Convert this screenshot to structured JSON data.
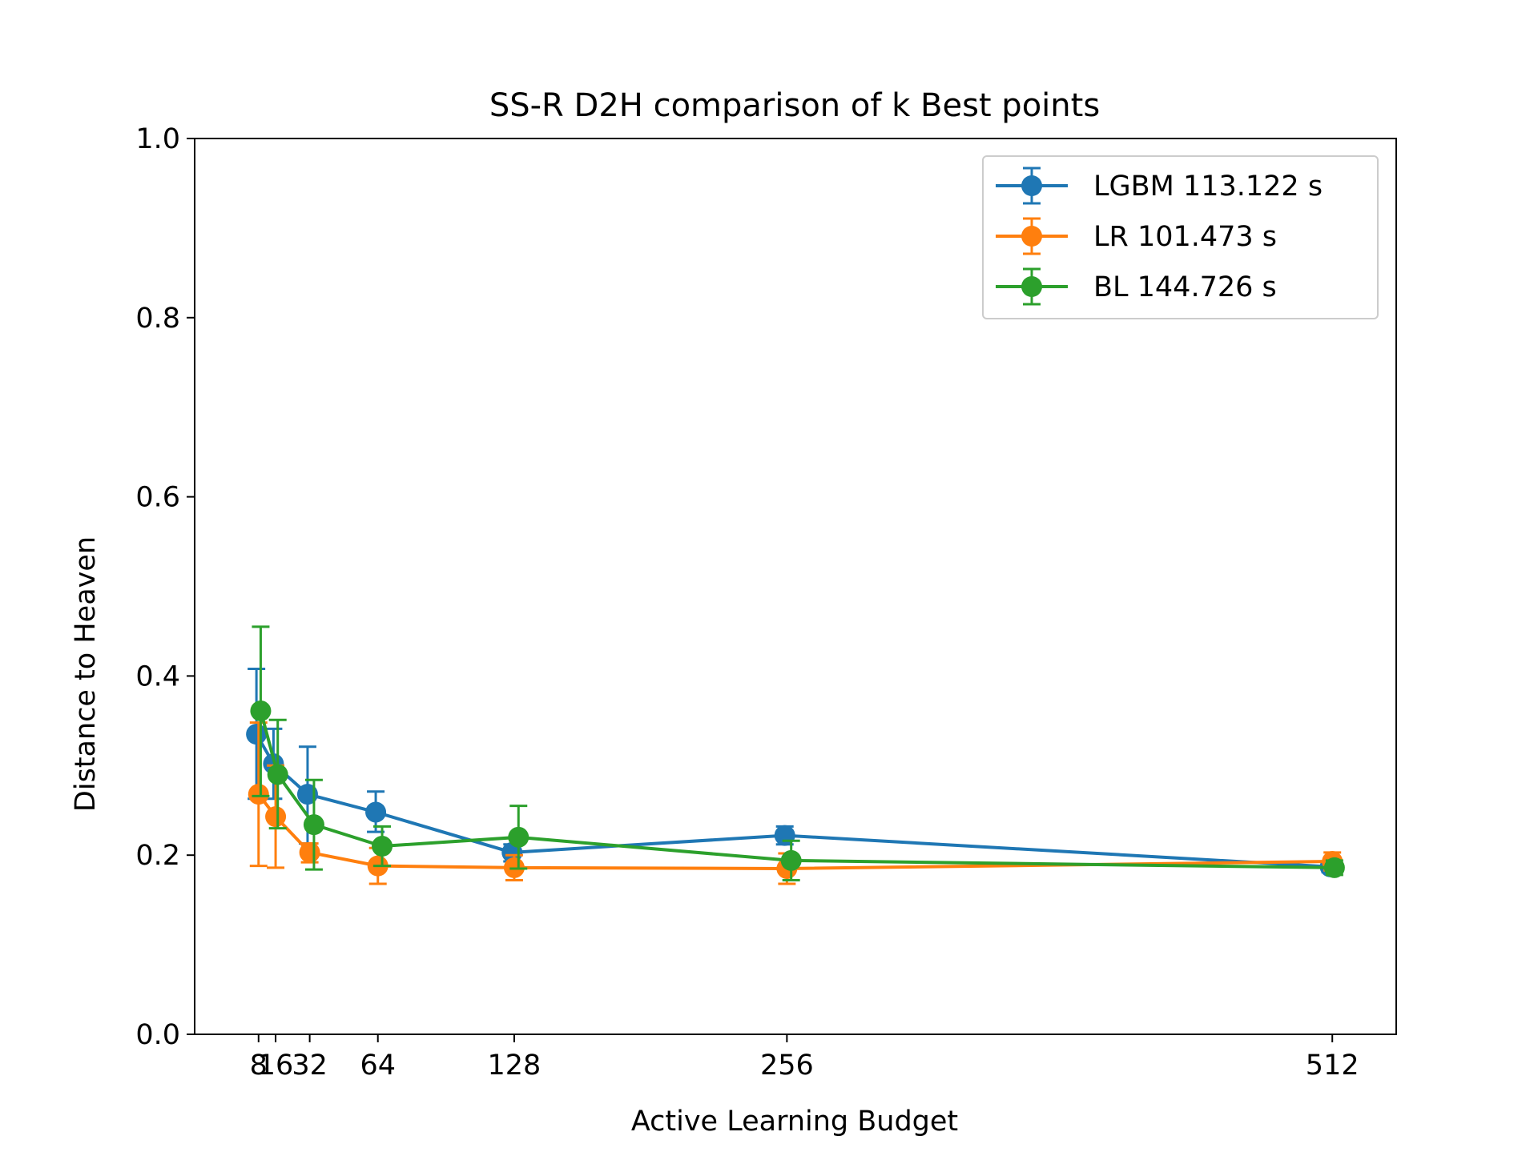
{
  "chart_data": {
    "type": "line",
    "title": "SS-R D2H comparison of k Best points",
    "xlabel": "Active Learning Budget",
    "ylabel": "Distance to Heaven",
    "xlim": [
      -22,
      542
    ],
    "ylim": [
      0.0,
      1.0
    ],
    "xticks": [
      8,
      16,
      32,
      64,
      128,
      256,
      512
    ],
    "xtick_labels": [
      "8",
      "16",
      "32",
      "64",
      "128",
      "256",
      "512"
    ],
    "yticks": [
      0.0,
      0.2,
      0.4,
      0.6,
      0.8,
      1.0
    ],
    "ytick_labels": [
      "0.0",
      "0.2",
      "0.4",
      "0.6",
      "0.8",
      "1.0"
    ],
    "grid": false,
    "legend_position": "top-right",
    "error_bars": true,
    "series": [
      {
        "name": "LGBM 113.122 s",
        "color": "#1f77b4",
        "x": [
          7,
          15,
          31,
          63,
          127,
          255,
          511
        ],
        "y": [
          0.335,
          0.302,
          0.268,
          0.248,
          0.203,
          0.222,
          0.187
        ],
        "yerr_low": [
          0.263,
          0.263,
          0.213,
          0.226,
          0.193,
          0.212,
          0.181
        ],
        "yerr_high": [
          0.408,
          0.341,
          0.321,
          0.271,
          0.212,
          0.232,
          0.193
        ]
      },
      {
        "name": "LR 101.473 s",
        "color": "#ff7f0e",
        "x": [
          8,
          16,
          32,
          64,
          128,
          256,
          512
        ],
        "y": [
          0.268,
          0.243,
          0.203,
          0.188,
          0.186,
          0.185,
          0.193
        ],
        "yerr_low": [
          0.188,
          0.186,
          0.192,
          0.168,
          0.172,
          0.168,
          0.183
        ],
        "yerr_high": [
          0.348,
          0.3,
          0.213,
          0.208,
          0.2,
          0.202,
          0.203
        ]
      },
      {
        "name": "BL 144.726 s",
        "color": "#2ca02c",
        "x": [
          9,
          17,
          34,
          66,
          130,
          258,
          513
        ],
        "y": [
          0.361,
          0.29,
          0.234,
          0.21,
          0.22,
          0.194,
          0.186
        ],
        "yerr_low": [
          0.266,
          0.23,
          0.184,
          0.188,
          0.185,
          0.172,
          0.178
        ],
        "yerr_high": [
          0.455,
          0.351,
          0.284,
          0.232,
          0.255,
          0.216,
          0.194
        ]
      }
    ]
  }
}
